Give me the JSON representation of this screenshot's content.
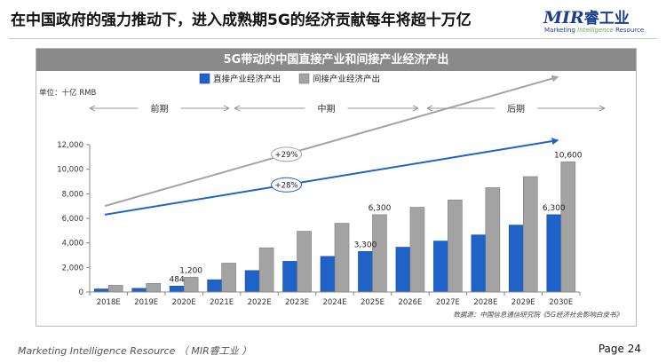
{
  "slide": {
    "title": "在中国政府的强力推动下，进入成熟期5G的经济贡献每年将超十万亿",
    "logo": {
      "brand": "MIR",
      "brand_cn": "睿工业",
      "tagline_a": "Marketing ",
      "tagline_b": "Intelligence",
      "tagline_c": " Resource"
    },
    "footer_left": "Marketing Intelligence Resource （ MIR睿工业 ）",
    "page": "Page 24"
  },
  "colors": {
    "direct": "#1f62c8",
    "indirect": "#a3a3a3",
    "header_bg": "#8a8a8a",
    "trend_direct": "#1f62c8",
    "trend_indirect": "#a3a3a3"
  },
  "chart_data": {
    "type": "bar",
    "title": "5G带动的中国直接产业和间接产业经济产出",
    "unit_label": "单位：十亿 RMB",
    "categories": [
      "2018E",
      "2019E",
      "2020E",
      "2021E",
      "2022E",
      "2023E",
      "2024E",
      "2025E",
      "2026E",
      "2027E",
      "2028E",
      "2029E",
      "2030E"
    ],
    "series": [
      {
        "name": "直接产业经济产出",
        "color_key": "direct",
        "values": [
          250,
          300,
          484,
          1000,
          1750,
          2500,
          2900,
          3300,
          3650,
          4150,
          4650,
          5450,
          6300
        ]
      },
      {
        "name": "间接产业经济产出",
        "color_key": "indirect",
        "values": [
          550,
          700,
          1200,
          2350,
          3600,
          4950,
          5600,
          6300,
          6900,
          7500,
          8500,
          9400,
          10600
        ]
      }
    ],
    "data_labels": [
      {
        "series": 0,
        "index": 2,
        "text": "484"
      },
      {
        "series": 1,
        "index": 2,
        "text": "1,200"
      },
      {
        "series": 0,
        "index": 7,
        "text": "3,300"
      },
      {
        "series": 1,
        "index": 7,
        "text": "6,300"
      },
      {
        "series": 0,
        "index": 12,
        "text": "6,300"
      },
      {
        "series": 1,
        "index": 12,
        "text": "10,600"
      }
    ],
    "ylim": [
      0,
      12000
    ],
    "yticks": [
      0,
      2000,
      4000,
      6000,
      8000,
      10000,
      12000
    ],
    "ytick_labels": [
      "0",
      "2,000",
      "4,000",
      "6,000",
      "8,000",
      "10,000",
      "12,000"
    ],
    "phases": [
      {
        "label": "前期",
        "from": "2018E",
        "to": "2021E"
      },
      {
        "label": "中期",
        "from": "2021E",
        "to": "2025E"
      },
      {
        "label": "后期",
        "from": "2026E",
        "to": "2030E"
      }
    ],
    "trends": [
      {
        "label": "+29%",
        "series": 1,
        "from": 0,
        "to": 12,
        "start_value": 7000,
        "end_value": 17500
      },
      {
        "label": "+28%",
        "series": 0,
        "from": 0,
        "to": 12,
        "start_value": 6300,
        "end_value": 12350
      }
    ],
    "legend_position": "top",
    "source": "数据源：中国信息通信研究院《5G经济社会影响白皮书》"
  }
}
